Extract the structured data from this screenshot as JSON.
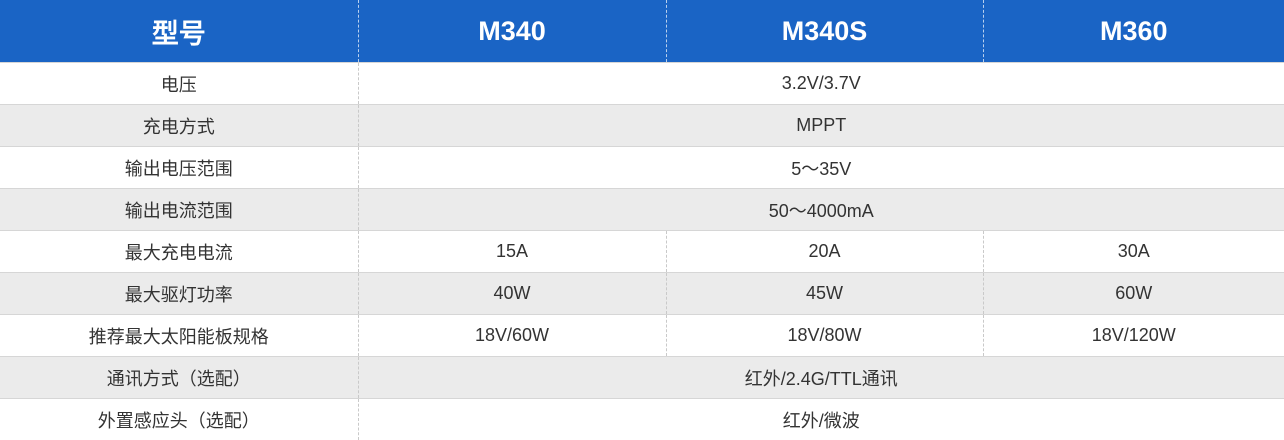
{
  "header": {
    "label": "型号",
    "models": [
      "M340",
      "M340S",
      "M360"
    ]
  },
  "rows": [
    {
      "label": "电压",
      "span": true,
      "value": "3.2V/3.7V"
    },
    {
      "label": "充电方式",
      "span": true,
      "value": "MPPT"
    },
    {
      "label": "输出电压范围",
      "span": true,
      "value": "5～35V"
    },
    {
      "label": "输出电流范围",
      "span": true,
      "value": "50～4000mA"
    },
    {
      "label": "最大充电电流",
      "span": false,
      "values": [
        "15A",
        "20A",
        "30A"
      ]
    },
    {
      "label": "最大驱灯功率",
      "span": false,
      "values": [
        "40W",
        "45W",
        "60W"
      ]
    },
    {
      "label": "推荐最大太阳能板规格",
      "span": false,
      "values": [
        "18V/60W",
        "18V/80W",
        "18V/120W"
      ]
    },
    {
      "label": "通讯方式（选配）",
      "span": true,
      "value": "红外/2.4G/TTL通讯"
    },
    {
      "label": "外置感应头（选配）",
      "span": true,
      "value": "红外/微波"
    }
  ],
  "colors": {
    "header_bg": "#1a64c5",
    "header_text": "#ffffff",
    "row_alt_bg": "#ebebeb",
    "body_text": "#333333"
  }
}
